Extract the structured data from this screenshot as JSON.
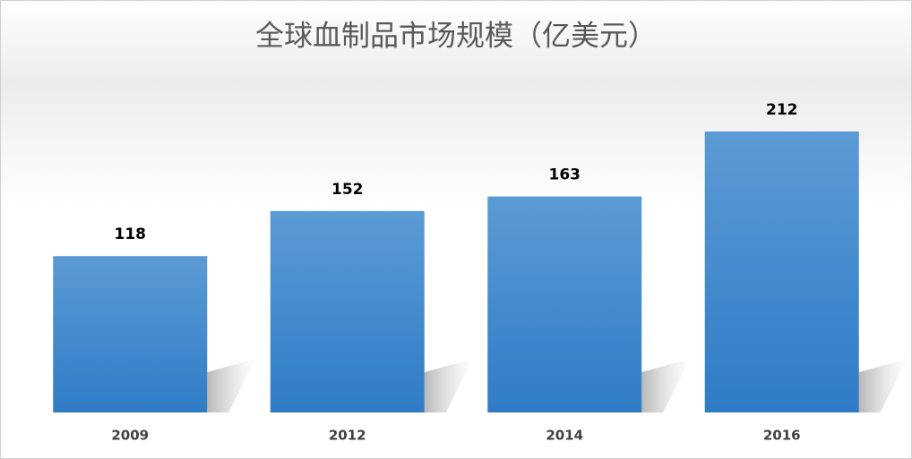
{
  "chart_data": {
    "type": "bar",
    "title": "全球血制品市场规模（亿美元）",
    "categories": [
      "2009",
      "2012",
      "2014",
      "2016"
    ],
    "values": [
      118,
      152,
      163,
      212
    ],
    "color": "#4a8fd3"
  }
}
